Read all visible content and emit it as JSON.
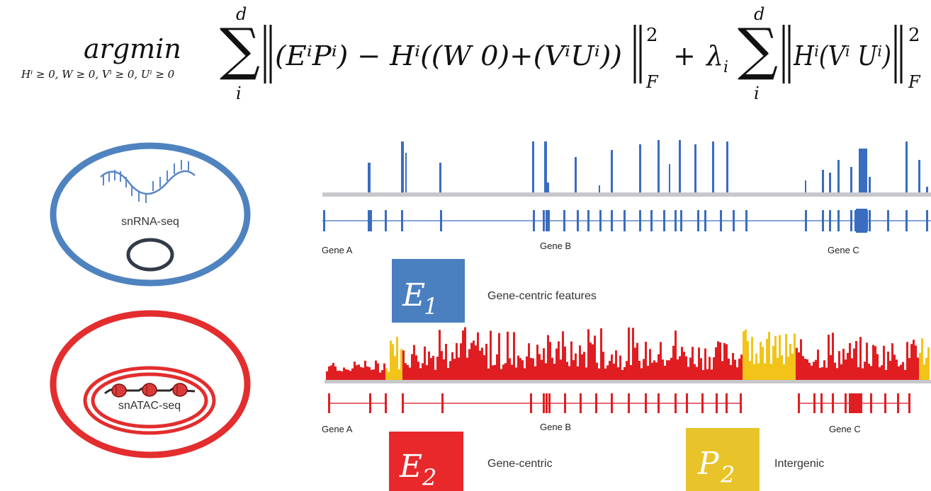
{
  "equation": {
    "operator": "argmin",
    "constraints": "Hⁱ ≥ 0, W ≥ 0, Vⁱ ≥ 0, Uⁱ ≥ 0",
    "sum_upper": "d",
    "sum_lower": "i",
    "term1": "(EⁱPⁱ) − Hⁱ((W 0)+(VⁱUⁱ))",
    "norm_sub": "F",
    "norm_sup": "2",
    "plus": "+",
    "lambda": "λ",
    "lambda_sub": "i",
    "term2": "Hⁱ(Vⁱ Uⁱ)"
  },
  "cells": {
    "rna_label": "snRNA-seq",
    "atac_label": "snATAC-seq"
  },
  "tracks": {
    "rna_genes": [
      "Gene A",
      "Gene B",
      "Gene C"
    ],
    "atac_genes": [
      "Gene A",
      "Gene B",
      "Gene C"
    ]
  },
  "matrices": [
    {
      "symbol": "E",
      "sub": "1",
      "label": "Gene-centric features",
      "color": "#4a7fc0"
    },
    {
      "symbol": "E",
      "sub": "2",
      "label": "Gene-centric",
      "color": "#e8282b"
    },
    {
      "symbol": "P",
      "sub": "2",
      "label": "Intergenic",
      "color": "#e8c42a"
    }
  ],
  "colors": {
    "rna_blue": "#3a6cc0",
    "atac_red": "#e01e22",
    "intergenic_yellow": "#f2c41a",
    "baseline_gray": "#c8c8cc"
  }
}
